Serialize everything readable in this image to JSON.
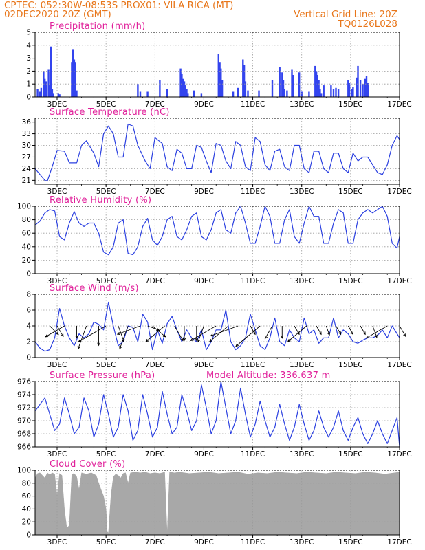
{
  "header": {
    "line1_left": "CPTEC:   052:30W-08:53S   PROX01: VILA RICA (MT)",
    "line2_left": "02DEC2020 20Z (GMT)",
    "line2_right": "Vertical Grid Line: 20Z",
    "line3_right": "TQ0126L028"
  },
  "colors": {
    "header": "#e8761a",
    "title": "#e0209a",
    "line": "#2a3fe0",
    "bar": "#3344ee",
    "cloud": "#a8a8a8",
    "grid": "#9a9a9a"
  },
  "x_axis": {
    "ticks": [
      {
        "day": 3,
        "label": "3DEC"
      },
      {
        "day": 5,
        "label": "5DEC"
      },
      {
        "day": 7,
        "label": "7DEC"
      },
      {
        "day": 9,
        "label": "9DEC"
      },
      {
        "day": 11,
        "label": "11DEC"
      },
      {
        "day": 13,
        "label": "13DEC"
      },
      {
        "day": 15,
        "label": "15DEC"
      },
      {
        "day": 17,
        "label": "17DEC"
      }
    ],
    "range_days": [
      2.1,
      17.0
    ]
  },
  "chart_data": [
    {
      "type": "bar",
      "title": "Precipitation (mm/h)",
      "ylim": [
        0,
        5
      ],
      "yticks": [
        0,
        1,
        2,
        3,
        4,
        5
      ],
      "x_days": [
        2.2,
        2.3,
        2.35,
        2.45,
        2.5,
        2.55,
        2.65,
        2.7,
        2.75,
        2.8,
        2.85,
        3.05,
        3.1,
        3.6,
        3.65,
        3.7,
        3.75,
        3.8,
        6.3,
        6.4,
        6.7,
        7.2,
        7.5,
        8.05,
        8.1,
        8.15,
        8.2,
        8.25,
        8.3,
        8.35,
        8.6,
        8.9,
        9.6,
        9.65,
        9.7,
        9.75,
        10.2,
        10.4,
        10.6,
        10.65,
        10.7,
        10.8,
        11.25,
        11.8,
        12.1,
        12.2,
        12.25,
        12.3,
        12.4,
        12.6,
        12.65,
        12.9,
        13.0,
        13.3,
        13.55,
        13.6,
        13.65,
        13.7,
        13.75,
        13.8,
        13.9,
        14.2,
        14.3,
        14.4,
        14.5,
        14.9,
        14.95,
        15.05,
        15.1,
        15.25,
        15.3,
        15.4,
        15.5,
        15.6,
        15.65,
        15.7
      ],
      "values": [
        0.6,
        0.4,
        0.7,
        2.0,
        1.4,
        1.2,
        2.1,
        0.9,
        3.9,
        0.6,
        0.3,
        0.3,
        0.2,
        2.7,
        3.7,
        2.9,
        2.7,
        0.5,
        1.0,
        0.4,
        0.4,
        1.3,
        0.6,
        2.2,
        1.8,
        1.4,
        1.2,
        0.9,
        0.6,
        0.3,
        0.5,
        0.3,
        3.3,
        2.7,
        2.2,
        1.3,
        0.4,
        0.7,
        2.9,
        2.5,
        1.2,
        0.5,
        0.5,
        1.3,
        2.3,
        1.9,
        1.3,
        0.6,
        0.5,
        2.1,
        1.7,
        1.9,
        0.4,
        0.4,
        2.4,
        2.0,
        1.7,
        1.3,
        0.6,
        0.3,
        0.9,
        0.9,
        0.6,
        0.7,
        0.6,
        1.3,
        1.1,
        0.6,
        0.8,
        1.5,
        2.4,
        1.3,
        1.0,
        1.4,
        1.6,
        1.1
      ]
    },
    {
      "type": "line",
      "title": "Surface Temperature (nC)",
      "ylim": [
        20,
        37
      ],
      "yticks": [
        21,
        24,
        27,
        30,
        33,
        36
      ],
      "x_days": [
        2.1,
        2.3,
        2.5,
        2.6,
        2.8,
        3.0,
        3.3,
        3.5,
        3.8,
        4.0,
        4.2,
        4.5,
        4.7,
        4.9,
        5.1,
        5.3,
        5.5,
        5.7,
        5.9,
        6.1,
        6.3,
        6.6,
        6.8,
        7.0,
        7.3,
        7.5,
        7.7,
        7.9,
        8.1,
        8.3,
        8.5,
        8.7,
        8.9,
        9.1,
        9.3,
        9.5,
        9.7,
        9.9,
        10.1,
        10.3,
        10.5,
        10.7,
        10.9,
        11.1,
        11.3,
        11.5,
        11.7,
        11.9,
        12.1,
        12.3,
        12.5,
        12.7,
        12.9,
        13.1,
        13.3,
        13.5,
        13.7,
        13.9,
        14.1,
        14.3,
        14.5,
        14.7,
        14.9,
        15.1,
        15.3,
        15.5,
        15.7,
        15.9,
        16.1,
        16.3,
        16.5,
        16.7,
        16.9,
        17.0
      ],
      "values": [
        24.0,
        22.5,
        21.0,
        20.8,
        24.5,
        28.7,
        28.5,
        25.5,
        25.5,
        30.0,
        31.2,
        28.0,
        24.5,
        33.0,
        35.0,
        33.0,
        27.0,
        27.0,
        35.5,
        35.0,
        30.0,
        26.0,
        24.0,
        32.0,
        30.5,
        24.5,
        23.5,
        29.0,
        28.0,
        24.0,
        24.0,
        30.0,
        29.5,
        26.0,
        23.0,
        30.5,
        30.0,
        26.0,
        24.0,
        31.0,
        30.0,
        24.5,
        23.5,
        32.0,
        31.0,
        25.0,
        23.5,
        28.5,
        29.0,
        24.5,
        23.5,
        30.0,
        30.0,
        24.0,
        23.0,
        28.5,
        28.5,
        24.0,
        23.0,
        28.0,
        28.0,
        24.0,
        23.0,
        28.0,
        26.0,
        27.0,
        27.0,
        25.0,
        23.0,
        22.5,
        25.0,
        30.0,
        32.5,
        31.5
      ]
    },
    {
      "type": "line",
      "title": "Relative Humidity (%)",
      "ylim": [
        0,
        100
      ],
      "yticks": [
        0,
        20,
        40,
        60,
        80,
        100
      ],
      "x_days": [
        2.1,
        2.3,
        2.5,
        2.7,
        2.9,
        3.1,
        3.3,
        3.5,
        3.7,
        3.9,
        4.1,
        4.3,
        4.5,
        4.7,
        4.9,
        5.1,
        5.3,
        5.5,
        5.7,
        5.9,
        6.1,
        6.3,
        6.5,
        6.7,
        6.9,
        7.1,
        7.3,
        7.5,
        7.7,
        7.9,
        8.1,
        8.3,
        8.5,
        8.7,
        8.9,
        9.1,
        9.3,
        9.5,
        9.7,
        9.9,
        10.1,
        10.3,
        10.5,
        10.7,
        10.9,
        11.1,
        11.3,
        11.5,
        11.7,
        11.9,
        12.1,
        12.3,
        12.5,
        12.7,
        12.9,
        13.1,
        13.3,
        13.5,
        13.7,
        13.9,
        14.1,
        14.3,
        14.5,
        14.7,
        14.9,
        15.1,
        15.3,
        15.5,
        15.7,
        15.9,
        16.1,
        16.3,
        16.5,
        16.7,
        16.9,
        17.0
      ],
      "values": [
        72,
        78,
        90,
        95,
        93,
        55,
        50,
        75,
        92,
        75,
        70,
        75,
        75,
        60,
        32,
        28,
        40,
        75,
        80,
        30,
        28,
        40,
        70,
        82,
        50,
        42,
        55,
        80,
        85,
        55,
        50,
        65,
        85,
        90,
        55,
        50,
        65,
        90,
        95,
        65,
        60,
        90,
        100,
        75,
        45,
        45,
        70,
        100,
        85,
        45,
        45,
        80,
        95,
        55,
        45,
        75,
        100,
        85,
        85,
        45,
        45,
        75,
        95,
        90,
        45,
        45,
        80,
        90,
        95,
        90,
        95,
        100,
        85,
        45,
        38,
        55
      ]
    },
    {
      "type": "line",
      "title": "Surface Wind (m/s)",
      "ylim": [
        0,
        8
      ],
      "yticks": [
        0,
        2,
        4,
        6,
        8
      ],
      "x_days": [
        2.1,
        2.3,
        2.5,
        2.7,
        2.9,
        3.1,
        3.3,
        3.5,
        3.7,
        3.9,
        4.1,
        4.3,
        4.5,
        4.7,
        4.9,
        5.1,
        5.3,
        5.5,
        5.7,
        5.9,
        6.1,
        6.3,
        6.5,
        6.7,
        6.9,
        7.1,
        7.3,
        7.5,
        7.7,
        7.9,
        8.1,
        8.3,
        8.5,
        8.7,
        8.9,
        9.1,
        9.3,
        9.5,
        9.7,
        9.9,
        10.1,
        10.3,
        10.5,
        10.7,
        10.9,
        11.1,
        11.3,
        11.5,
        11.7,
        11.9,
        12.1,
        12.3,
        12.5,
        12.7,
        12.9,
        13.1,
        13.3,
        13.5,
        13.7,
        13.9,
        14.1,
        14.3,
        14.5,
        14.7,
        14.9,
        15.1,
        15.3,
        15.5,
        15.7,
        15.9,
        16.1,
        16.3,
        16.5,
        16.7,
        16.9,
        17.0
      ],
      "values": [
        2.0,
        1.2,
        0.8,
        1.0,
        2.5,
        6.2,
        4.0,
        2.5,
        1.5,
        3.0,
        2.5,
        3.0,
        4.5,
        4.2,
        3.5,
        7.0,
        4.0,
        1.5,
        2.0,
        4.0,
        3.8,
        2.0,
        5.5,
        4.5,
        1.0,
        3.5,
        1.8,
        4.3,
        5.2,
        3.5,
        2.0,
        3.5,
        2.5,
        2.0,
        3.5,
        1.0,
        2.0,
        3.5,
        3.5,
        6.0,
        2.0,
        1.0,
        1.5,
        2.5,
        5.5,
        3.5,
        1.5,
        1.0,
        2.5,
        5.0,
        2.0,
        1.5,
        3.5,
        2.5,
        2.0,
        5.0,
        3.0,
        3.5,
        1.8,
        2.5,
        2.5,
        5.0,
        2.5,
        3.5,
        3.0,
        2.0,
        1.8,
        2.2,
        2.5,
        2.5,
        2.8,
        3.5,
        2.5,
        4.0,
        3.0,
        2.5
      ],
      "arrows": [
        {
          "day": 2.7,
          "dir": 315,
          "len": 0.5
        },
        {
          "day": 3.0,
          "dir": 300,
          "len": 0.5
        },
        {
          "day": 3.3,
          "dir": 210,
          "len": 0.9
        },
        {
          "day": 3.8,
          "dir": 270,
          "len": 0.5
        },
        {
          "day": 4.2,
          "dir": 250,
          "len": 1.0
        },
        {
          "day": 4.7,
          "dir": 270,
          "len": 0.8
        },
        {
          "day": 5.0,
          "dir": 210,
          "len": 1.3
        },
        {
          "day": 5.5,
          "dir": 290,
          "len": 0.7
        },
        {
          "day": 5.9,
          "dir": 250,
          "len": 1.0
        },
        {
          "day": 6.4,
          "dir": 200,
          "len": 1.0
        },
        {
          "day": 6.7,
          "dir": 340,
          "len": 0.5
        },
        {
          "day": 6.9,
          "dir": 320,
          "len": 0.7
        },
        {
          "day": 7.4,
          "dir": 220,
          "len": 1.0
        },
        {
          "day": 7.8,
          "dir": 300,
          "len": 0.7
        },
        {
          "day": 8.2,
          "dir": 270,
          "len": 0.6
        },
        {
          "day": 8.7,
          "dir": 270,
          "len": 0.6
        },
        {
          "day": 9.0,
          "dir": 250,
          "len": 0.7
        },
        {
          "day": 9.5,
          "dir": 210,
          "len": 1.2
        },
        {
          "day": 10.0,
          "dir": 220,
          "len": 1.0
        },
        {
          "day": 10.4,
          "dir": 200,
          "len": 1.2
        },
        {
          "day": 10.9,
          "dir": 300,
          "len": 0.4
        },
        {
          "day": 11.3,
          "dir": 220,
          "len": 1.3
        },
        {
          "day": 11.8,
          "dir": 240,
          "len": 0.6
        },
        {
          "day": 12.2,
          "dir": 270,
          "len": 0.5
        },
        {
          "day": 12.7,
          "dir": 300,
          "len": 0.4
        },
        {
          "day": 13.2,
          "dir": 220,
          "len": 1.0
        },
        {
          "day": 13.6,
          "dir": 300,
          "len": 0.4
        },
        {
          "day": 14.0,
          "dir": 290,
          "len": 0.4
        },
        {
          "day": 14.4,
          "dir": 300,
          "len": 0.4
        },
        {
          "day": 14.9,
          "dir": 300,
          "len": 0.4
        },
        {
          "day": 15.4,
          "dir": 300,
          "len": 0.4
        },
        {
          "day": 15.9,
          "dir": 290,
          "len": 0.5
        },
        {
          "day": 16.5,
          "dir": 210,
          "len": 1.0
        },
        {
          "day": 17.0,
          "dir": 300,
          "len": 0.5
        }
      ]
    },
    {
      "type": "line",
      "title": "Surface Pressure (hPa)",
      "annotation": "Model Altitude: 336.637  m",
      "ylim": [
        966,
        976
      ],
      "yticks": [
        966,
        968,
        970,
        972,
        974,
        976
      ],
      "x_days": [
        2.1,
        2.3,
        2.5,
        2.7,
        2.9,
        3.1,
        3.3,
        3.5,
        3.7,
        3.9,
        4.1,
        4.3,
        4.5,
        4.7,
        4.9,
        5.1,
        5.3,
        5.5,
        5.7,
        5.9,
        6.1,
        6.3,
        6.5,
        6.7,
        6.9,
        7.1,
        7.3,
        7.5,
        7.7,
        7.9,
        8.1,
        8.3,
        8.5,
        8.7,
        8.9,
        9.1,
        9.3,
        9.5,
        9.7,
        9.9,
        10.1,
        10.3,
        10.5,
        10.7,
        10.9,
        11.1,
        11.3,
        11.5,
        11.7,
        11.9,
        12.1,
        12.3,
        12.5,
        12.7,
        12.9,
        13.1,
        13.3,
        13.5,
        13.7,
        13.9,
        14.1,
        14.3,
        14.5,
        14.7,
        14.9,
        15.1,
        15.3,
        15.5,
        15.7,
        15.9,
        16.1,
        16.3,
        16.5,
        16.7,
        16.9,
        17.0
      ],
      "values": [
        971.5,
        972.5,
        973.5,
        971.0,
        968.5,
        969.5,
        973.5,
        971.0,
        968.0,
        969.0,
        973.5,
        971.5,
        967.5,
        969.5,
        974.0,
        971.0,
        967.5,
        969.0,
        974.0,
        971.5,
        967.0,
        968.5,
        974.0,
        971.0,
        967.5,
        969.0,
        974.5,
        971.0,
        968.0,
        969.0,
        974.0,
        971.5,
        968.5,
        970.0,
        975.5,
        972.0,
        968.0,
        970.0,
        976.0,
        972.0,
        968.0,
        970.0,
        975.0,
        971.0,
        967.5,
        969.5,
        973.0,
        970.0,
        967.5,
        969.0,
        972.5,
        969.5,
        967.0,
        969.0,
        972.5,
        969.5,
        967.0,
        968.5,
        971.5,
        969.0,
        967.5,
        969.0,
        971.5,
        968.5,
        967.0,
        969.0,
        970.5,
        968.0,
        966.5,
        968.0,
        970.0,
        968.0,
        966.5,
        968.5,
        970.5,
        966.0
      ]
    },
    {
      "type": "area",
      "title": "Cloud Cover (%)",
      "ylim": [
        0,
        100
      ],
      "yticks": [
        0,
        20,
        40,
        60,
        80,
        100
      ],
      "x_days": [
        2.1,
        2.2,
        2.3,
        2.4,
        2.5,
        2.6,
        2.7,
        2.8,
        2.9,
        3.0,
        3.1,
        3.2,
        3.3,
        3.4,
        3.5,
        3.6,
        3.7,
        3.8,
        3.9,
        4.0,
        4.2,
        4.4,
        4.6,
        4.7,
        4.8,
        4.9,
        5.0,
        5.05,
        5.1,
        5.2,
        5.3,
        5.4,
        5.5,
        5.6,
        5.7,
        5.8,
        5.9,
        6.0,
        6.2,
        6.4,
        6.6,
        6.8,
        7.0,
        7.2,
        7.4,
        7.5,
        7.6,
        7.8,
        8.0,
        8.4,
        8.8,
        9.2,
        9.6,
        10.0,
        10.4,
        10.8,
        11.2,
        11.6,
        12.0,
        12.4,
        12.8,
        13.2,
        13.6,
        14.0,
        14.4,
        14.8,
        15.2,
        15.6,
        16.0,
        16.4,
        16.8,
        17.0
      ],
      "values": [
        88,
        95,
        96,
        92,
        88,
        96,
        93,
        96,
        94,
        60,
        95,
        92,
        40,
        10,
        15,
        94,
        95,
        90,
        70,
        96,
        94,
        96,
        92,
        80,
        70,
        60,
        40,
        5,
        3,
        60,
        90,
        94,
        92,
        88,
        95,
        96,
        80,
        96,
        97,
        96,
        97,
        95,
        96,
        95,
        97,
        1,
        97,
        96,
        97,
        95,
        96,
        97,
        95,
        96,
        97,
        94,
        96,
        95,
        97,
        96,
        95,
        97,
        96,
        95,
        97,
        96,
        95,
        97,
        96,
        94,
        96,
        97
      ]
    }
  ]
}
